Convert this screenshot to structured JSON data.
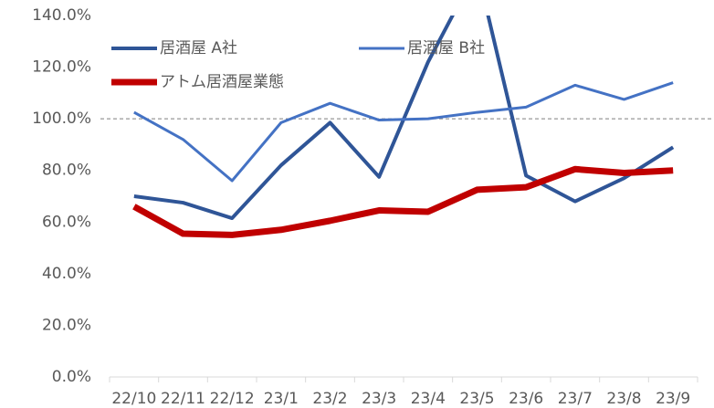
{
  "chart_data": {
    "type": "line",
    "categories": [
      "22/10",
      "22/11",
      "22/12",
      "23/1",
      "23/2",
      "23/3",
      "23/4",
      "23/5",
      "23/6",
      "23/7",
      "23/8",
      "23/9"
    ],
    "series": [
      {
        "name": "居酒屋 A社",
        "color": "#2f5597",
        "values": [
          70,
          67.5,
          61.5,
          82,
          98.5,
          77.5,
          122,
          158,
          78,
          68,
          77,
          89
        ]
      },
      {
        "name": "居酒屋 B社",
        "color": "#4472c4",
        "values": [
          102.5,
          92,
          76,
          98.5,
          106,
          99.5,
          100,
          102.5,
          104.5,
          113,
          107.5,
          114
        ]
      },
      {
        "name": "アトム居酒屋業態",
        "color": "#c00000",
        "values": [
          66,
          55.5,
          55,
          57,
          60.5,
          64.5,
          64,
          72.5,
          73.5,
          80.5,
          79,
          80
        ]
      }
    ],
    "ylim": [
      0,
      140
    ],
    "yticks": [
      {
        "value": 0,
        "label": "0.0%"
      },
      {
        "value": 20,
        "label": "20.0%"
      },
      {
        "value": 40,
        "label": "40.0%"
      },
      {
        "value": 60,
        "label": "60.0%"
      },
      {
        "value": 80,
        "label": "80.0%"
      },
      {
        "value": 100,
        "label": "100.0%"
      },
      {
        "value": 120,
        "label": "120.0%"
      },
      {
        "value": 140,
        "label": "140.0%"
      }
    ],
    "reference_line": 100
  }
}
